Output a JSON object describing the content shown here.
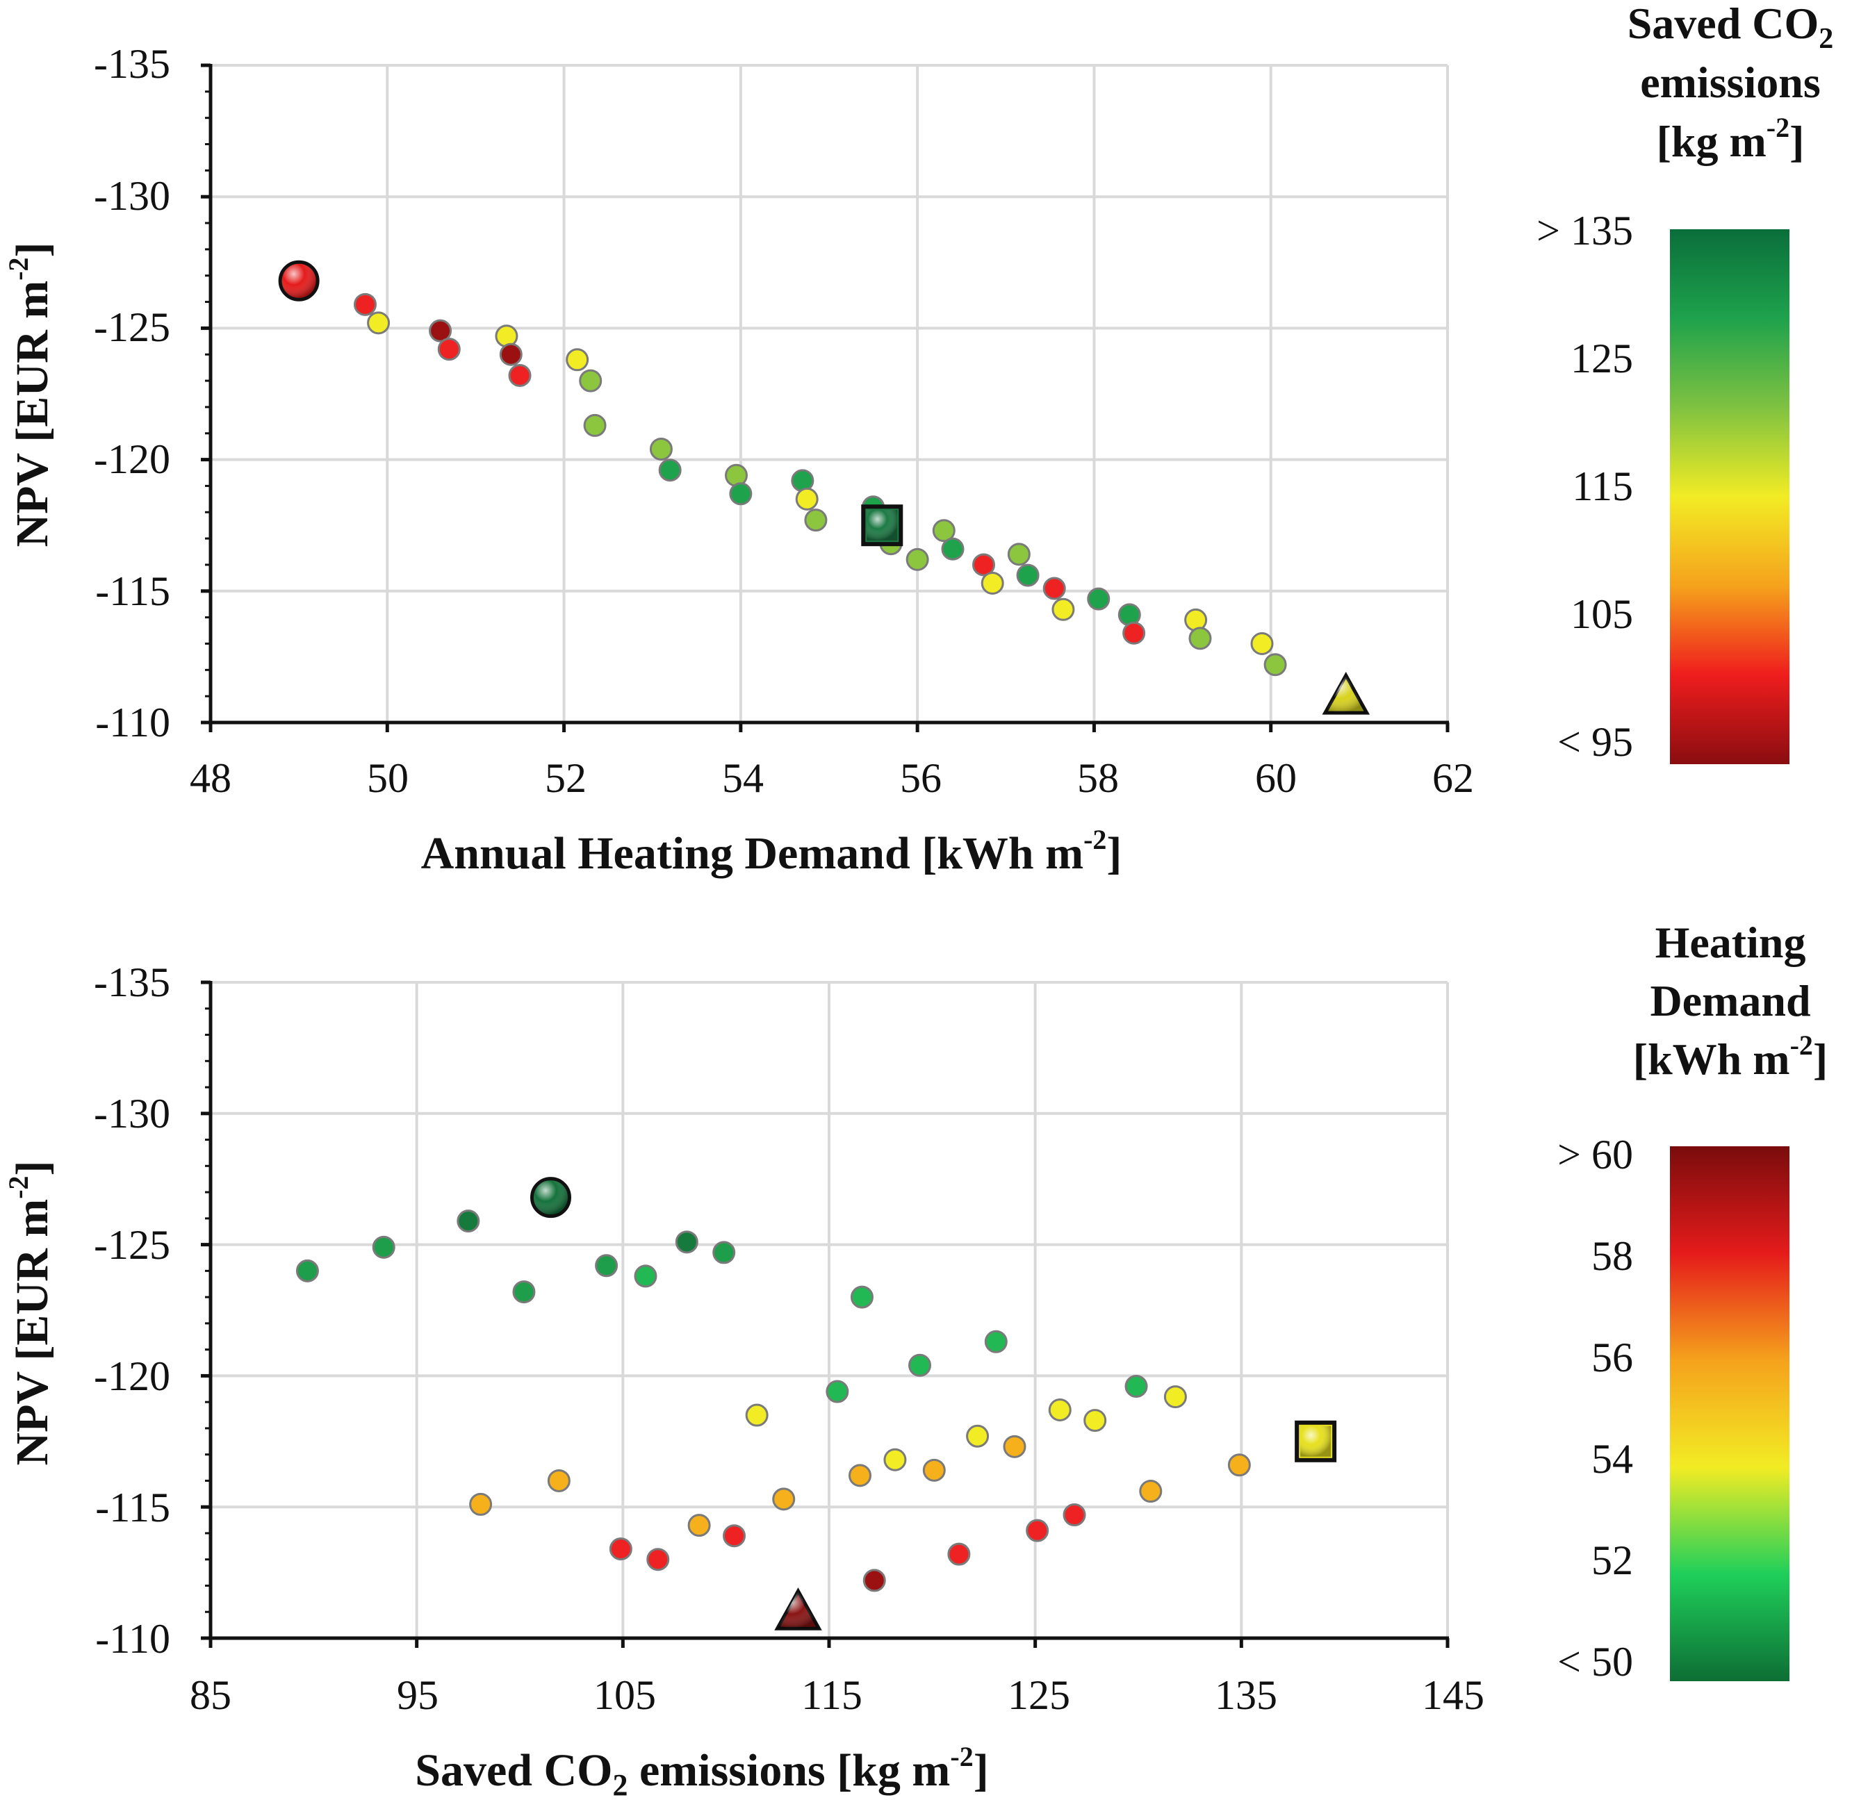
{
  "chart_data": [
    {
      "type": "scatter",
      "xlabel": "Annual Heating Demand [kWh m",
      "xlabel_sup": "-2",
      "xlabel_end": "]",
      "ylabel": "NPV [EUR m",
      "ylabel_sup": "-2",
      "ylabel_end": "]",
      "xlim": [
        48,
        62
      ],
      "ylim": [
        -110,
        -135
      ],
      "xticks": [
        "48",
        "50",
        "52",
        "54",
        "56",
        "58",
        "60",
        "62"
      ],
      "yticks": [
        "-135",
        "-130",
        "-125",
        "-120",
        "-115",
        "-110"
      ],
      "grid": true,
      "colorbar": {
        "title_lines": [
          "Saved CO",
          "emissions",
          "[kg m"
        ],
        "title_sub": "2",
        "title_sup": "-2",
        "title_end": "]",
        "labels": [
          "> 135",
          "125",
          "115",
          "105",
          "< 95"
        ],
        "colors_top_to_bottom": [
          "#0a6e3a",
          "#1ea24c",
          "#7fc241",
          "#f2ec24",
          "#f5a21c",
          "#ef1d1d",
          "#8a0d10"
        ]
      },
      "points": [
        {
          "x": 49.75,
          "y": -125.9,
          "color": "#ee2222"
        },
        {
          "x": 49.9,
          "y": -125.2,
          "color": "#f2ec24"
        },
        {
          "x": 50.6,
          "y": -124.9,
          "color": "#9b1111"
        },
        {
          "x": 50.7,
          "y": -124.2,
          "color": "#ee2222"
        },
        {
          "x": 51.35,
          "y": -124.7,
          "color": "#f2ec24"
        },
        {
          "x": 51.4,
          "y": -124.0,
          "color": "#9b1111"
        },
        {
          "x": 51.5,
          "y": -123.2,
          "color": "#ee2222"
        },
        {
          "x": 52.15,
          "y": -123.8,
          "color": "#f2ec24"
        },
        {
          "x": 52.3,
          "y": -123.0,
          "color": "#8cc63f"
        },
        {
          "x": 52.35,
          "y": -121.3,
          "color": "#8cc63f"
        },
        {
          "x": 53.1,
          "y": -120.4,
          "color": "#8cc63f"
        },
        {
          "x": 53.2,
          "y": -119.6,
          "color": "#1ea24c"
        },
        {
          "x": 53.95,
          "y": -119.4,
          "color": "#8cc63f"
        },
        {
          "x": 54.0,
          "y": -118.7,
          "color": "#1ea24c"
        },
        {
          "x": 54.7,
          "y": -119.2,
          "color": "#1ea24c"
        },
        {
          "x": 54.75,
          "y": -118.5,
          "color": "#f2ec24"
        },
        {
          "x": 54.85,
          "y": -117.7,
          "color": "#8cc63f"
        },
        {
          "x": 55.5,
          "y": -118.2,
          "color": "#1ea24c"
        },
        {
          "x": 55.7,
          "y": -116.8,
          "color": "#8cc63f"
        },
        {
          "x": 56.0,
          "y": -116.2,
          "color": "#8cc63f"
        },
        {
          "x": 56.3,
          "y": -117.3,
          "color": "#8cc63f"
        },
        {
          "x": 56.4,
          "y": -116.6,
          "color": "#1ea24c"
        },
        {
          "x": 56.75,
          "y": -116.0,
          "color": "#ee2222"
        },
        {
          "x": 56.85,
          "y": -115.3,
          "color": "#f2ec24"
        },
        {
          "x": 57.15,
          "y": -116.4,
          "color": "#8cc63f"
        },
        {
          "x": 57.25,
          "y": -115.6,
          "color": "#1ea24c"
        },
        {
          "x": 57.55,
          "y": -115.1,
          "color": "#ee2222"
        },
        {
          "x": 57.65,
          "y": -114.3,
          "color": "#f2ec24"
        },
        {
          "x": 58.05,
          "y": -114.7,
          "color": "#1ea24c"
        },
        {
          "x": 58.4,
          "y": -114.1,
          "color": "#1ea24c"
        },
        {
          "x": 58.45,
          "y": -113.4,
          "color": "#ee2222"
        },
        {
          "x": 59.15,
          "y": -113.9,
          "color": "#f2ec24"
        },
        {
          "x": 59.2,
          "y": -113.2,
          "color": "#8cc63f"
        },
        {
          "x": 59.9,
          "y": -113.0,
          "color": "#f2ec24"
        },
        {
          "x": 60.05,
          "y": -112.2,
          "color": "#8cc63f"
        }
      ],
      "highlights": [
        {
          "shape": "circle",
          "x": 49.0,
          "y": -126.8,
          "color": "#e51b1b"
        },
        {
          "shape": "square",
          "x": 55.6,
          "y": -117.5,
          "color": "#1c7a45"
        },
        {
          "shape": "triangle",
          "x": 60.85,
          "y": -111.0,
          "color": "#d8d21e"
        }
      ]
    },
    {
      "type": "scatter",
      "xlabel": "Saved CO",
      "xlabel_sub": "2",
      "xlabel_mid": " emissions [kg m",
      "xlabel_sup": "-2",
      "xlabel_end": "]",
      "ylabel": "NPV [EUR m",
      "ylabel_sup": "-2",
      "ylabel_end": "]",
      "xlim": [
        85,
        145
      ],
      "ylim": [
        -110,
        -135
      ],
      "xticks": [
        "85",
        "95",
        "105",
        "115",
        "125",
        "135",
        "145"
      ],
      "yticks": [
        "-135",
        "-130",
        "-125",
        "-120",
        "-115",
        "-110"
      ],
      "grid": true,
      "colorbar": {
        "title_lines": [
          "Heating",
          "Demand",
          "[kWh m"
        ],
        "title_sup": "-2",
        "title_end": "]",
        "labels": [
          "> 60",
          "58",
          "56",
          "54",
          "52",
          "< 50"
        ],
        "colors_top_to_bottom": [
          "#7a0c0c",
          "#e51b1b",
          "#f5a21c",
          "#f2ec24",
          "#1fcf5a",
          "#0d6e34"
        ]
      },
      "points": [
        {
          "x": 89.7,
          "y": -124.0,
          "color": "#1e9e4a"
        },
        {
          "x": 93.4,
          "y": -124.9,
          "color": "#1e9e4a"
        },
        {
          "x": 97.5,
          "y": -125.9,
          "color": "#157a3b"
        },
        {
          "x": 100.2,
          "y": -123.2,
          "color": "#1e9e4a"
        },
        {
          "x": 104.2,
          "y": -124.2,
          "color": "#1e9e4a"
        },
        {
          "x": 106.1,
          "y": -123.8,
          "color": "#22b955"
        },
        {
          "x": 108.1,
          "y": -125.1,
          "color": "#157a3b"
        },
        {
          "x": 109.9,
          "y": -124.7,
          "color": "#1e9e4a"
        },
        {
          "x": 116.6,
          "y": -123.0,
          "color": "#22b955"
        },
        {
          "x": 123.1,
          "y": -121.3,
          "color": "#22b955"
        },
        {
          "x": 119.4,
          "y": -120.4,
          "color": "#22b955"
        },
        {
          "x": 115.4,
          "y": -119.4,
          "color": "#22b955"
        },
        {
          "x": 111.5,
          "y": -118.5,
          "color": "#f2ec24"
        },
        {
          "x": 129.9,
          "y": -119.6,
          "color": "#22b955"
        },
        {
          "x": 131.8,
          "y": -119.2,
          "color": "#f2ec24"
        },
        {
          "x": 126.2,
          "y": -118.7,
          "color": "#f2ec24"
        },
        {
          "x": 127.9,
          "y": -118.3,
          "color": "#f2ec24"
        },
        {
          "x": 122.2,
          "y": -117.7,
          "color": "#f2ec24"
        },
        {
          "x": 124.0,
          "y": -117.3,
          "color": "#f5b01c"
        },
        {
          "x": 118.2,
          "y": -116.8,
          "color": "#f2ec24"
        },
        {
          "x": 120.1,
          "y": -116.4,
          "color": "#f5b01c"
        },
        {
          "x": 116.5,
          "y": -116.2,
          "color": "#f5b01c"
        },
        {
          "x": 134.9,
          "y": -116.6,
          "color": "#f5b01c"
        },
        {
          "x": 101.9,
          "y": -116.0,
          "color": "#f5b01c"
        },
        {
          "x": 130.6,
          "y": -115.6,
          "color": "#f5b01c"
        },
        {
          "x": 112.8,
          "y": -115.3,
          "color": "#f5b01c"
        },
        {
          "x": 98.1,
          "y": -115.1,
          "color": "#f5b01c"
        },
        {
          "x": 126.9,
          "y": -114.7,
          "color": "#ee2222"
        },
        {
          "x": 108.7,
          "y": -114.3,
          "color": "#f5b01c"
        },
        {
          "x": 125.1,
          "y": -114.1,
          "color": "#ee2222"
        },
        {
          "x": 110.4,
          "y": -113.9,
          "color": "#ee2222"
        },
        {
          "x": 104.9,
          "y": -113.4,
          "color": "#ee2222"
        },
        {
          "x": 121.3,
          "y": -113.2,
          "color": "#ee2222"
        },
        {
          "x": 106.7,
          "y": -113.0,
          "color": "#ee2222"
        },
        {
          "x": 117.2,
          "y": -112.2,
          "color": "#9b1111"
        }
      ],
      "highlights": [
        {
          "shape": "circle",
          "x": 101.5,
          "y": -126.8,
          "color": "#15723c"
        },
        {
          "shape": "square",
          "x": 138.6,
          "y": -117.5,
          "color": "#e6e01e"
        },
        {
          "shape": "triangle",
          "x": 113.5,
          "y": -111.0,
          "color": "#8a1414"
        }
      ]
    }
  ]
}
